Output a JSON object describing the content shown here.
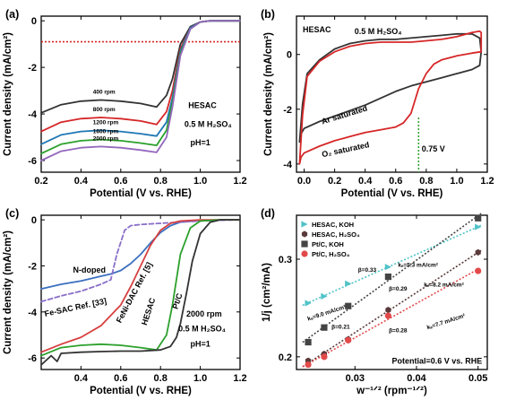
{
  "chart_data": [
    {
      "panel": "(a)",
      "type": "line",
      "xlabel": "Potential (V vs. RHE)",
      "ylabel": "Current density (mA/cm²)",
      "xlim": [
        0.2,
        1.2
      ],
      "ylim": [
        -6.5,
        0.2
      ],
      "xticks": [
        "0.2",
        "0.4",
        "0.6",
        "0.8",
        "1.0",
        "1.2"
      ],
      "yticks": [
        "0",
        "-2",
        "-4",
        "-6"
      ],
      "annotations": [
        "HESAC",
        "0.5 M H₂SO₄",
        "pH=1"
      ],
      "baseline": {
        "y": -0.9,
        "color": "#d62728",
        "style": "dotted"
      },
      "series": [
        {
          "name": "400 rpm",
          "color": "#333333",
          "x": [
            0.2,
            0.3,
            0.4,
            0.5,
            0.6,
            0.7,
            0.78,
            0.83,
            0.86,
            0.9,
            0.95,
            1.0,
            1.05,
            1.1,
            1.15,
            1.2
          ],
          "y": [
            -3.95,
            -3.6,
            -3.45,
            -3.4,
            -3.45,
            -3.55,
            -3.7,
            -3.2,
            -2.5,
            -1.0,
            -0.25,
            -0.05,
            0,
            0,
            0,
            0
          ]
        },
        {
          "name": "800 rpm",
          "color": "#d62728",
          "x": [
            0.2,
            0.3,
            0.4,
            0.5,
            0.6,
            0.7,
            0.78,
            0.83,
            0.86,
            0.9,
            0.95,
            1.0,
            1.05,
            1.1,
            1.15,
            1.2
          ],
          "y": [
            -4.75,
            -4.35,
            -4.2,
            -4.15,
            -4.2,
            -4.3,
            -4.45,
            -3.9,
            -3.0,
            -1.2,
            -0.3,
            -0.05,
            0,
            0,
            0,
            0
          ]
        },
        {
          "name": "1200 rpm",
          "color": "#1f77b4",
          "x": [
            0.2,
            0.3,
            0.4,
            0.5,
            0.6,
            0.7,
            0.78,
            0.83,
            0.86,
            0.9,
            0.95,
            1.0,
            1.05,
            1.1,
            1.15,
            1.2
          ],
          "y": [
            -5.3,
            -4.9,
            -4.75,
            -4.7,
            -4.75,
            -4.85,
            -4.95,
            -4.35,
            -3.3,
            -1.3,
            -0.3,
            -0.05,
            0,
            0,
            0,
            0
          ]
        },
        {
          "name": "1600 rpm",
          "color": "#2ca02c",
          "x": [
            0.2,
            0.3,
            0.4,
            0.5,
            0.6,
            0.7,
            0.78,
            0.83,
            0.86,
            0.9,
            0.95,
            1.0,
            1.05,
            1.1,
            1.15,
            1.2
          ],
          "y": [
            -5.7,
            -5.3,
            -5.15,
            -5.1,
            -5.15,
            -5.25,
            -5.35,
            -4.7,
            -3.5,
            -1.4,
            -0.35,
            -0.05,
            0,
            0,
            0,
            0
          ]
        },
        {
          "name": "2000 rpm",
          "color": "#9467bd",
          "x": [
            0.2,
            0.3,
            0.4,
            0.5,
            0.6,
            0.7,
            0.78,
            0.83,
            0.86,
            0.9,
            0.95,
            1.0,
            1.05,
            1.1,
            1.15,
            1.2
          ],
          "y": [
            -6.0,
            -5.6,
            -5.45,
            -5.4,
            -5.45,
            -5.55,
            -5.65,
            -5.0,
            -3.7,
            -1.5,
            -0.35,
            -0.05,
            0,
            0,
            0,
            0
          ]
        }
      ]
    },
    {
      "panel": "(b)",
      "type": "line",
      "xlabel": "Potential (V vs. RHE)",
      "ylabel": "Current density (mA/cm²)",
      "xlim": [
        -0.05,
        1.2
      ],
      "ylim": [
        -4.3,
        1.4
      ],
      "xticks": [
        "0.0",
        "0.2",
        "0.4",
        "0.6",
        "0.8",
        "1.0",
        "1.2"
      ],
      "yticks": [
        "0",
        "-2",
        "-4"
      ],
      "annotations": [
        "HESAC",
        "0.5 M H₂SO₄",
        "Ar saturated",
        "O₂ saturated",
        "0.75 V"
      ],
      "marker_line": {
        "x": 0.75,
        "color": "#2ca02c"
      },
      "series": [
        {
          "name": "Ar saturated",
          "color": "#333333",
          "x": [
            -0.03,
            -0.02,
            0.0,
            0.1,
            0.2,
            0.3,
            0.4,
            0.5,
            0.6,
            0.7,
            0.8,
            0.9,
            1.0,
            1.1,
            1.15,
            1.16,
            1.15,
            1.1,
            1.0,
            0.9,
            0.8,
            0.7,
            0.6,
            0.5,
            0.4,
            0.3,
            0.2,
            0.1,
            0.02,
            -0.01,
            -0.03
          ],
          "y": [
            -3.2,
            -2.9,
            -2.7,
            -2.45,
            -2.25,
            -2.05,
            -1.85,
            -1.6,
            -1.35,
            -1.15,
            -1.0,
            -0.85,
            -0.7,
            -0.55,
            -0.4,
            0.1,
            0.6,
            0.75,
            0.75,
            0.7,
            0.65,
            0.6,
            0.55,
            0.55,
            0.5,
            0.4,
            0.2,
            -0.2,
            -0.7,
            -1.8,
            -3.2
          ]
        },
        {
          "name": "O₂ saturated",
          "color": "#d62728",
          "x": [
            -0.03,
            -0.02,
            0.0,
            0.1,
            0.2,
            0.3,
            0.4,
            0.5,
            0.6,
            0.65,
            0.7,
            0.75,
            0.8,
            0.85,
            0.9,
            1.0,
            1.1,
            1.16,
            1.16,
            1.15,
            1.1,
            1.0,
            0.9,
            0.8,
            0.7,
            0.6,
            0.5,
            0.4,
            0.3,
            0.2,
            0.1,
            0.02,
            -0.01,
            -0.03
          ],
          "y": [
            -4.0,
            -3.75,
            -3.6,
            -3.35,
            -3.15,
            -3.0,
            -2.85,
            -2.75,
            -2.65,
            -2.5,
            -2.15,
            -1.25,
            -0.7,
            -0.35,
            -0.2,
            -0.05,
            0.05,
            0.1,
            0.8,
            0.85,
            0.8,
            0.65,
            0.55,
            0.5,
            0.45,
            0.45,
            0.45,
            0.4,
            0.3,
            0.1,
            -0.25,
            -0.8,
            -2.2,
            -4.0
          ]
        }
      ]
    },
    {
      "panel": "(c)",
      "type": "line",
      "xlabel": "Potential (V vs. RHE)",
      "ylabel": "Current density (mA/cm²)",
      "xlim": [
        0.2,
        1.2
      ],
      "ylim": [
        -6.5,
        0.2
      ],
      "xticks": [
        "0.4",
        "0.6",
        "0.8",
        "1.0",
        "1.2"
      ],
      "yticks": [
        "0",
        "-2",
        "-4",
        "-6"
      ],
      "annotations": [
        "2000 rpm",
        "0.5 M H₂SO₄",
        "pH=1"
      ],
      "series": [
        {
          "name": "N-doped",
          "color": "#3a6fbf",
          "style": "solid",
          "x": [
            0.2,
            0.3,
            0.4,
            0.5,
            0.55,
            0.6,
            0.65,
            0.7,
            0.75,
            0.8,
            0.85,
            0.9,
            1.0,
            1.1,
            1.2
          ],
          "y": [
            -3.0,
            -2.8,
            -2.65,
            -2.45,
            -2.35,
            -2.2,
            -1.9,
            -1.5,
            -1.0,
            -0.55,
            -0.25,
            -0.1,
            -0.02,
            0,
            0
          ]
        },
        {
          "name": "Fe-SAC Ref. [33]",
          "color": "#8a6fc8",
          "style": "dashed",
          "x": [
            0.2,
            0.3,
            0.4,
            0.5,
            0.55,
            0.58,
            0.62,
            0.65,
            0.7,
            0.8,
            0.9,
            1.0,
            1.1,
            1.2
          ],
          "y": [
            -3.55,
            -3.3,
            -3.1,
            -2.8,
            -2.6,
            -1.5,
            -0.45,
            -0.25,
            -0.2,
            -0.15,
            -0.1,
            -0.05,
            -0.02,
            0
          ]
        },
        {
          "name": "FeNi-DAC Ref. [5]",
          "color": "#d64040",
          "style": "solid",
          "x": [
            0.2,
            0.3,
            0.4,
            0.5,
            0.6,
            0.65,
            0.7,
            0.75,
            0.8,
            0.85,
            0.9,
            1.0,
            1.1,
            1.2
          ],
          "y": [
            -5.75,
            -5.4,
            -5.1,
            -4.6,
            -3.7,
            -2.9,
            -2.0,
            -1.1,
            -0.45,
            -0.15,
            -0.05,
            0,
            0,
            0
          ]
        },
        {
          "name": "HESAC",
          "color": "#2ca02c",
          "style": "solid",
          "x": [
            0.2,
            0.3,
            0.4,
            0.5,
            0.6,
            0.7,
            0.78,
            0.83,
            0.86,
            0.9,
            0.95,
            1.0,
            1.1,
            1.2
          ],
          "y": [
            -5.9,
            -5.55,
            -5.45,
            -5.4,
            -5.45,
            -5.55,
            -5.65,
            -5.0,
            -3.7,
            -1.5,
            -0.35,
            -0.05,
            0,
            0
          ]
        },
        {
          "name": "Pt/C",
          "color": "#333333",
          "style": "solid",
          "x": [
            0.2,
            0.25,
            0.28,
            0.3,
            0.4,
            0.5,
            0.6,
            0.7,
            0.8,
            0.85,
            0.88,
            0.9,
            0.93,
            0.96,
            1.0,
            1.05,
            1.1,
            1.2
          ],
          "y": [
            -6.3,
            -5.9,
            -6.15,
            -5.8,
            -5.75,
            -5.72,
            -5.7,
            -5.7,
            -5.65,
            -5.5,
            -5.1,
            -4.5,
            -3.2,
            -1.8,
            -0.6,
            -0.1,
            0,
            0
          ]
        }
      ],
      "labels": [
        "N-doped",
        "Fe-SAC Ref. [33]",
        "FeNi-DAC Ref. [5]",
        "HESAC",
        "Pt/C"
      ]
    },
    {
      "panel": "(d)",
      "type": "scatter",
      "xlabel": "w⁻¹ᐟ² (rpm⁻¹ᐟ²)",
      "ylabel": "1/j (cm²/mA)",
      "xlim": [
        0.0205,
        0.0515
      ],
      "ylim": [
        0.187,
        0.345
      ],
      "xticks": [
        "0.03",
        "0.04",
        "0.05"
      ],
      "yticks": [
        "0.2",
        "0.3"
      ],
      "annotations": [
        "Potential=0.6 V vs. RHE",
        "β=0.33",
        "kₑ=5.3 mA/cm²",
        "β=0.29",
        "kₑ=8.2 mA/cm²",
        "β=0.21",
        "kₑ=9.0 mA/cm²",
        "β=0.28",
        "kₑ=7.7 mA/cm²"
      ],
      "series": [
        {
          "name": "HESAC, KOH",
          "color": "#4fc3c8",
          "marker": "triangle",
          "x": [
            0.0224,
            0.025,
            0.0289,
            0.0354,
            0.05
          ],
          "y": [
            0.255,
            0.262,
            0.275,
            0.292,
            0.333
          ]
        },
        {
          "name": "HESAC, H₂SO₄",
          "color": "#5a3a3a",
          "marker": "hexagon",
          "x": [
            0.0224,
            0.025,
            0.0289,
            0.0354,
            0.05
          ],
          "y": [
            0.196,
            0.203,
            0.218,
            0.248,
            0.307
          ]
        },
        {
          "name": "Pt/C, KOH",
          "color": "#444444",
          "marker": "square",
          "x": [
            0.0224,
            0.025,
            0.0289,
            0.0354,
            0.05
          ],
          "y": [
            0.215,
            0.23,
            0.252,
            0.282,
            0.342
          ]
        },
        {
          "name": "Pt/C, H₂SO₄",
          "color": "#e24a4a",
          "marker": "circle",
          "x": [
            0.0224,
            0.025,
            0.0289,
            0.0354,
            0.05
          ],
          "y": [
            0.192,
            0.2,
            0.217,
            0.242,
            0.288
          ]
        }
      ]
    }
  ]
}
